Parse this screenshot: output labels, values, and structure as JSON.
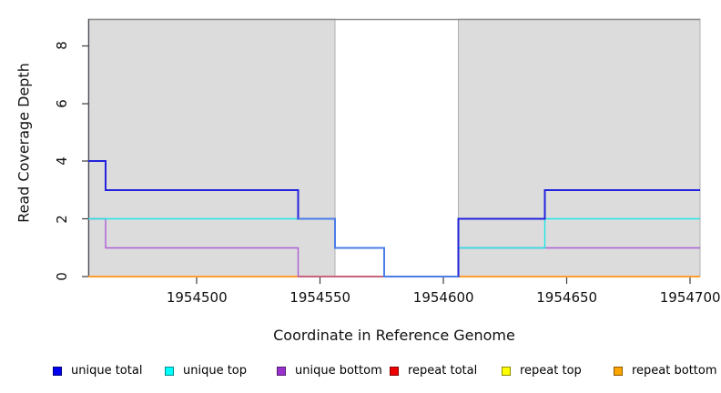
{
  "chart_data": {
    "type": "line",
    "subtype": "step",
    "title": "",
    "xlabel": "Coordinate in Reference Genome",
    "ylabel": "Read Coverage Depth",
    "xlim": [
      1954456,
      1954704
    ],
    "ylim": [
      0,
      8.93
    ],
    "x_ticks": [
      1954500,
      1954550,
      1954600,
      1954650,
      1954700
    ],
    "y_ticks": [
      0,
      2,
      4,
      6,
      8
    ],
    "grid": false,
    "shaded_regions": [
      {
        "from": 1954456,
        "to": 1954556
      },
      {
        "from": 1954606,
        "to": 1954704
      }
    ],
    "series": [
      {
        "name": "repeat total",
        "color": "#DE2010",
        "width": 1.4,
        "steps": [
          [
            1954456,
            0
          ]
        ]
      },
      {
        "name": "repeat top",
        "color": "#FFFF00",
        "width": 1.4,
        "steps": [
          [
            1954456,
            0
          ]
        ]
      },
      {
        "name": "repeat bottom",
        "color": "#FF9D2E",
        "width": 2,
        "steps": [
          [
            1954456,
            0
          ]
        ]
      },
      {
        "name": "unique bottom",
        "color": "#AC5FD6",
        "width": 1.4,
        "steps": [
          [
            1954456,
            2
          ],
          [
            1954463,
            1
          ],
          [
            1954541,
            0
          ],
          [
            1954606,
            1
          ]
        ]
      },
      {
        "name": "unique top",
        "color": "#22E6E6",
        "width": 1.4,
        "steps": [
          [
            1954456,
            2
          ],
          [
            1954556,
            1
          ],
          [
            1954576,
            0
          ],
          [
            1954606,
            1
          ],
          [
            1954641,
            2
          ]
        ]
      },
      {
        "name": "unique total",
        "color": "#2222DD",
        "width": 2,
        "steps": [
          [
            1954456,
            4
          ],
          [
            1954463,
            3
          ],
          [
            1954541,
            2
          ],
          [
            1954556,
            1
          ],
          [
            1954576,
            0
          ],
          [
            1954606,
            2
          ],
          [
            1954641,
            3
          ]
        ]
      }
    ],
    "overlap_blends": [
      {
        "over": "unique bottom",
        "under": "repeat bottom",
        "from": 1954541,
        "to": 1954576,
        "color": "#C25D7E",
        "width": 1.6
      },
      {
        "over": "unique total",
        "under": "unique top",
        "from": 1954541,
        "to": 1954606,
        "color": "#4B7CE8",
        "width": 2
      }
    ],
    "legend_position": "bottom"
  },
  "legend": {
    "items": [
      {
        "label": "unique total",
        "fill": "#0000EE"
      },
      {
        "label": "unique top",
        "fill": "#00FFFF"
      },
      {
        "label": "unique bottom",
        "fill": "#9932CC"
      },
      {
        "label": "repeat total",
        "fill": "#EE0000"
      },
      {
        "label": "repeat top",
        "fill": "#FFFF00"
      },
      {
        "label": "repeat bottom",
        "fill": "#FFA500"
      }
    ]
  },
  "colors": {
    "shade_fill": "#DCDCDC",
    "shade_border": "#AFAFAF",
    "top_rule": "#8F8F8F",
    "axis_line": "#4A4A55",
    "tick": "#3C3C3C",
    "text": "#111111",
    "background": "#FFFFFF"
  }
}
